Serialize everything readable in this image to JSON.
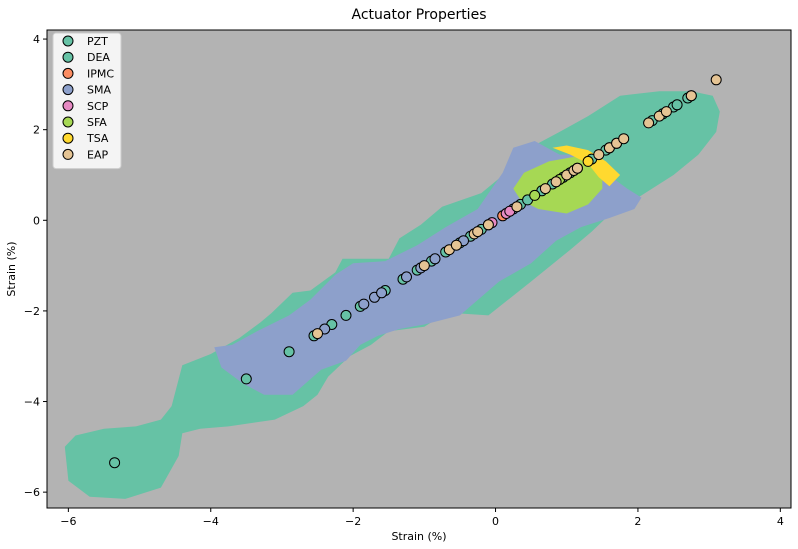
{
  "chart_data": {
    "type": "scatter",
    "title": "Actuator Properties",
    "xlabel": "Strain (%)",
    "ylabel": "Strain (%)",
    "xlim": [
      -6.3,
      4.15
    ],
    "ylim": [
      -6.35,
      4.2
    ],
    "xticks": [
      -6,
      -4,
      -2,
      0,
      2,
      4
    ],
    "yticks": [
      -6,
      -4,
      -2,
      0,
      2,
      4
    ],
    "xtick_labels": [
      "−6",
      "−4",
      "−2",
      "0",
      "2",
      "4"
    ],
    "ytick_labels": [
      "−6",
      "−4",
      "−2",
      "0",
      "2",
      "4"
    ],
    "background_color": "#b3b3b3",
    "legend_position": "top-left",
    "series": [
      {
        "name": "PZT",
        "color": "#66c2a5",
        "points": [
          [
            -5.35,
            -5.35
          ],
          [
            -3.5,
            -3.5
          ],
          [
            -2.9,
            -2.9
          ],
          [
            -2.55,
            -2.55
          ],
          [
            -2.3,
            -2.3
          ],
          [
            -2.1,
            -2.1
          ],
          [
            -1.9,
            -1.9
          ],
          [
            -1.55,
            -1.55
          ],
          [
            -1.3,
            -1.3
          ],
          [
            -1.1,
            -1.1
          ],
          [
            -0.9,
            -0.9
          ],
          [
            -0.7,
            -0.7
          ],
          [
            -0.5,
            -0.5
          ],
          [
            -0.35,
            -0.35
          ],
          [
            -0.2,
            -0.2
          ],
          [
            -0.1,
            -0.1
          ],
          [
            0.35,
            0.35
          ],
          [
            0.45,
            0.45
          ],
          [
            0.65,
            0.65
          ],
          [
            0.8,
            0.8
          ],
          [
            0.95,
            0.95
          ],
          [
            1.05,
            1.05
          ],
          [
            1.15,
            1.15
          ],
          [
            1.35,
            1.35
          ],
          [
            1.55,
            1.55
          ],
          [
            1.7,
            1.7
          ],
          [
            2.2,
            2.2
          ],
          [
            2.35,
            2.35
          ],
          [
            2.5,
            2.5
          ],
          [
            2.7,
            2.7
          ]
        ]
      },
      {
        "name": "DEA",
        "color": "#66c2a5",
        "points": [
          [
            2.55,
            2.55
          ],
          [
            2.75,
            2.75
          ]
        ]
      },
      {
        "name": "IPMC",
        "color": "#fc8d62",
        "points": [
          [
            0.1,
            0.1
          ]
        ]
      },
      {
        "name": "SMA",
        "color": "#8da0cb",
        "points": [
          [
            -2.4,
            -2.4
          ],
          [
            -1.85,
            -1.85
          ],
          [
            -1.7,
            -1.7
          ],
          [
            -1.6,
            -1.6
          ],
          [
            -1.25,
            -1.25
          ],
          [
            -1.05,
            -1.05
          ],
          [
            -0.85,
            -0.85
          ],
          [
            -0.45,
            -0.45
          ],
          [
            0.25,
            0.25
          ]
        ]
      },
      {
        "name": "SCP",
        "color": "#e78ac3",
        "points": [
          [
            -0.05,
            -0.05
          ],
          [
            0.15,
            0.15
          ],
          [
            0.2,
            0.2
          ]
        ]
      },
      {
        "name": "SFA",
        "color": "#a6d854",
        "points": [
          [
            0.55,
            0.55
          ],
          [
            0.9,
            0.9
          ]
        ]
      },
      {
        "name": "TSA",
        "color": "#ffd92f",
        "points": [
          [
            1.3,
            1.3
          ],
          [
            1.6,
            1.6
          ]
        ]
      },
      {
        "name": "EAP",
        "color": "#e5c494",
        "points": [
          [
            -2.5,
            -2.5
          ],
          [
            -1.0,
            -1.0
          ],
          [
            -0.65,
            -0.65
          ],
          [
            -0.55,
            -0.55
          ],
          [
            -0.3,
            -0.3
          ],
          [
            -0.25,
            -0.25
          ],
          [
            -0.1,
            -0.1
          ],
          [
            0.3,
            0.3
          ],
          [
            0.7,
            0.7
          ],
          [
            0.85,
            0.85
          ],
          [
            1.0,
            1.0
          ],
          [
            1.1,
            1.1
          ],
          [
            1.15,
            1.15
          ],
          [
            1.45,
            1.45
          ],
          [
            1.6,
            1.6
          ],
          [
            1.7,
            1.7
          ],
          [
            1.8,
            1.8
          ],
          [
            2.15,
            2.15
          ],
          [
            2.3,
            2.3
          ],
          [
            2.4,
            2.4
          ],
          [
            2.75,
            2.75
          ],
          [
            3.1,
            3.1
          ]
        ]
      }
    ],
    "regions": [
      {
        "class": "PZT",
        "color": "#66c2a5",
        "points": [
          [
            -6.05,
            -5.0
          ],
          [
            -5.9,
            -4.75
          ],
          [
            -5.5,
            -4.6
          ],
          [
            -5.05,
            -4.55
          ],
          [
            -4.7,
            -4.4
          ],
          [
            -4.55,
            -4.1
          ],
          [
            -4.4,
            -3.2
          ],
          [
            -4.0,
            -2.95
          ],
          [
            -3.6,
            -2.6
          ],
          [
            -3.3,
            -2.25
          ],
          [
            -3.15,
            -2.05
          ],
          [
            -2.85,
            -1.6
          ],
          [
            -2.6,
            -1.55
          ],
          [
            -2.25,
            -1.15
          ],
          [
            -2.15,
            -0.85
          ],
          [
            -1.5,
            -0.85
          ],
          [
            -1.35,
            -0.4
          ],
          [
            -1.05,
            -0.1
          ],
          [
            -0.75,
            0.3
          ],
          [
            -0.2,
            0.6
          ],
          [
            0.3,
            1.25
          ],
          [
            0.6,
            1.7
          ],
          [
            0.9,
            1.95
          ],
          [
            1.3,
            2.3
          ],
          [
            1.75,
            2.75
          ],
          [
            2.3,
            2.85
          ],
          [
            2.75,
            2.85
          ],
          [
            3.05,
            2.75
          ],
          [
            3.15,
            2.4
          ],
          [
            3.1,
            1.95
          ],
          [
            2.85,
            1.45
          ],
          [
            2.5,
            1.0
          ],
          [
            2.05,
            0.55
          ],
          [
            1.65,
            0.2
          ],
          [
            1.35,
            -0.25
          ],
          [
            1.05,
            -0.65
          ],
          [
            0.5,
            -1.35
          ],
          [
            -0.1,
            -2.1
          ],
          [
            -0.55,
            -2.05
          ],
          [
            -0.85,
            -2.2
          ],
          [
            -1.0,
            -2.35
          ],
          [
            -1.5,
            -2.45
          ],
          [
            -1.75,
            -2.75
          ],
          [
            -2.05,
            -3.0
          ],
          [
            -2.35,
            -3.45
          ],
          [
            -2.5,
            -3.85
          ],
          [
            -2.7,
            -4.1
          ],
          [
            -3.1,
            -4.4
          ],
          [
            -3.75,
            -4.55
          ],
          [
            -4.15,
            -4.6
          ],
          [
            -4.4,
            -4.7
          ],
          [
            -4.45,
            -5.2
          ],
          [
            -4.7,
            -5.9
          ],
          [
            -5.2,
            -6.15
          ],
          [
            -5.7,
            -6.1
          ],
          [
            -6.0,
            -5.75
          ]
        ]
      },
      {
        "class": "SMA",
        "color": "#8da0cb",
        "points": [
          [
            -3.95,
            -2.8
          ],
          [
            -3.7,
            -2.75
          ],
          [
            -3.35,
            -2.45
          ],
          [
            -2.9,
            -2.1
          ],
          [
            -2.6,
            -1.75
          ],
          [
            -2.25,
            -1.2
          ],
          [
            -2.0,
            -0.95
          ],
          [
            -1.55,
            -0.9
          ],
          [
            -1.1,
            -0.55
          ],
          [
            -0.7,
            -0.15
          ],
          [
            -0.25,
            0.25
          ],
          [
            0.1,
            1.05
          ],
          [
            0.25,
            1.6
          ],
          [
            0.55,
            1.75
          ],
          [
            0.9,
            1.45
          ],
          [
            1.15,
            1.45
          ],
          [
            1.5,
            1.1
          ],
          [
            1.85,
            0.7
          ],
          [
            2.05,
            0.5
          ],
          [
            1.95,
            0.25
          ],
          [
            1.6,
            0.05
          ],
          [
            1.2,
            -0.15
          ],
          [
            0.85,
            -0.45
          ],
          [
            0.5,
            -0.95
          ],
          [
            0.05,
            -1.35
          ],
          [
            -0.5,
            -2.1
          ],
          [
            -1.0,
            -2.3
          ],
          [
            -1.35,
            -2.4
          ],
          [
            -1.65,
            -2.55
          ],
          [
            -1.9,
            -2.75
          ],
          [
            -2.1,
            -3.1
          ],
          [
            -2.45,
            -3.3
          ],
          [
            -2.85,
            -3.85
          ],
          [
            -3.25,
            -3.85
          ],
          [
            -3.55,
            -3.6
          ],
          [
            -3.85,
            -3.25
          ]
        ]
      },
      {
        "class": "SFA",
        "color": "#a6d854",
        "points": [
          [
            0.25,
            0.7
          ],
          [
            0.4,
            1.05
          ],
          [
            0.75,
            1.3
          ],
          [
            1.1,
            1.4
          ],
          [
            1.35,
            1.35
          ],
          [
            1.5,
            1.1
          ],
          [
            1.5,
            0.7
          ],
          [
            1.3,
            0.35
          ],
          [
            1.0,
            0.15
          ],
          [
            0.6,
            0.25
          ],
          [
            0.35,
            0.45
          ]
        ]
      },
      {
        "class": "TSA",
        "color": "#ffd92f",
        "points": [
          [
            0.8,
            1.6
          ],
          [
            1.0,
            1.65
          ],
          [
            1.3,
            1.55
          ],
          [
            1.55,
            1.3
          ],
          [
            1.75,
            1.0
          ],
          [
            1.6,
            0.75
          ],
          [
            1.45,
            0.95
          ],
          [
            1.3,
            1.25
          ],
          [
            1.05,
            1.45
          ]
        ]
      }
    ]
  },
  "legend": {
    "items": [
      {
        "label": "PZT",
        "color": "#66c2a5"
      },
      {
        "label": "DEA",
        "color": "#66c2a5"
      },
      {
        "label": "IPMC",
        "color": "#fc8d62"
      },
      {
        "label": "SMA",
        "color": "#8da0cb"
      },
      {
        "label": "SCP",
        "color": "#e78ac3"
      },
      {
        "label": "SFA",
        "color": "#a6d854"
      },
      {
        "label": "TSA",
        "color": "#ffd92f"
      },
      {
        "label": "EAP",
        "color": "#e5c494"
      }
    ]
  }
}
